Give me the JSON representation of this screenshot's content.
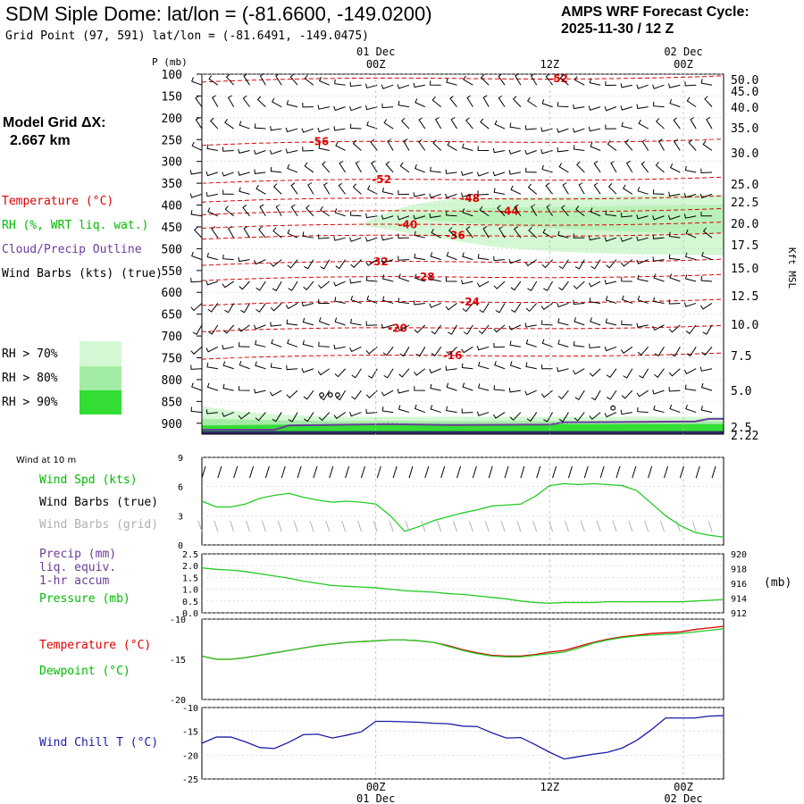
{
  "header": {
    "title": "SDM Siple Dome:  lat/lon = (-81.6600, -149.0200)",
    "subtitle": "Grid Point (97, 591) lat/lon = (-81.6491, -149.0475)",
    "cycle_line1": "AMPS WRF Forecast Cycle:",
    "cycle_line2": "2025-11-30 / 12  Z",
    "model_grid_label": "Model Grid ΔX:",
    "model_grid_value": "2.667 km"
  },
  "legend_main": {
    "temperature": "Temperature (°C)",
    "rh": "RH (%, WRT liq. wat.)",
    "cloud": "Cloud/Precip Outline",
    "wind": "Wind Barbs (kts) (true)",
    "rh70": "RH > 70%",
    "rh80": "RH > 80%",
    "rh90": "RH > 90%",
    "rh_colors": [
      "#d4f8d4",
      "#a3eca3",
      "#33dd33"
    ]
  },
  "legend_wind10": {
    "heading": "Wind at 10 m",
    "spd": "Wind Spd (kts)",
    "barbs_true": "Wind Barbs (true)",
    "barbs_grid": "Wind Barbs (grid)"
  },
  "legend_precip": {
    "precip1": "Precip (mm)",
    "precip2": "liq. equiv.",
    "precip3": "1-hr accum",
    "pressure": "Pressure (mb)",
    "right_unit": "(mb)"
  },
  "legend_temp": {
    "temperature": "Temperature (°C)",
    "dewpoint": "Dewpoint (°C)"
  },
  "legend_chill": {
    "label": "Wind Chill T (°C)"
  },
  "time_axis": {
    "top_dates": [
      "01 Dec",
      "02 Dec"
    ],
    "top_hours": [
      "00Z",
      "12Z",
      "00Z"
    ],
    "bottom_hours": [
      "00Z",
      "12Z",
      "00Z"
    ],
    "bottom_dates": [
      "01 Dec",
      "02 Dec"
    ]
  },
  "colors": {
    "temperature": "#dd0000",
    "rh_green": "#00bb00",
    "cloud_outline": "#6a3d9a",
    "pressure_line": "#22cc22",
    "dewpoint": "#22cc22",
    "wind_chill": "#1a1aa8",
    "grid_barbs": "#b0b0b0"
  },
  "chart_data": [
    {
      "type": "line",
      "name": "vertical cross-section",
      "ylabel": "P (mb)",
      "y2label": "Kft MSL",
      "x_hours_from_cycle": [
        0,
        12,
        24,
        36
      ],
      "pressure_ticks": [
        100,
        150,
        200,
        250,
        300,
        350,
        400,
        450,
        500,
        550,
        600,
        650,
        700,
        750,
        800,
        850,
        900
      ],
      "height_ticks": [
        "50.0",
        "45.0",
        "40.0",
        "35.0",
        "30.0",
        "25.0",
        "22.5",
        "20.0",
        "17.5",
        "15.0",
        "12.5",
        "10.0",
        "7.5",
        "5.0",
        "2.5",
        "2.22"
      ],
      "temperature_labels": [
        {
          "value": "-52",
          "hour": 24.6,
          "p": 110
        },
        {
          "value": "-56",
          "hour": 8.1,
          "p": 255
        },
        {
          "value": "-52",
          "hour": 12.4,
          "p": 342
        },
        {
          "value": "-48",
          "hour": 18.5,
          "p": 385
        },
        {
          "value": "-44",
          "hour": 21.2,
          "p": 414
        },
        {
          "value": "-40",
          "hour": 14.2,
          "p": 445
        },
        {
          "value": "-36",
          "hour": 17.5,
          "p": 470
        },
        {
          "value": "-32",
          "hour": 12.2,
          "p": 530
        },
        {
          "value": "-28",
          "hour": 15.4,
          "p": 565
        },
        {
          "value": "-24",
          "hour": 18.5,
          "p": 622
        },
        {
          "value": "-20",
          "hour": 13.5,
          "p": 682
        },
        {
          "value": "-16",
          "hour": 17.3,
          "p": 745
        }
      ],
      "rh_region_70": {
        "hours_start": 11,
        "hours_end": 36,
        "p_top": 385,
        "p_bottom": 515
      },
      "rh_region_80": {
        "hours_start": 14,
        "hours_end": 36,
        "p_top": 405,
        "p_bottom": 465
      }
    },
    {
      "type": "line",
      "name": "10 m wind speed",
      "ylabel": "kts",
      "ylim": [
        0,
        9
      ],
      "yticks": [
        0,
        3,
        6,
        9
      ],
      "x": [
        0,
        1,
        2,
        3,
        4,
        5,
        6,
        7,
        8,
        9,
        10,
        11,
        12,
        13,
        14,
        15,
        16,
        17,
        18,
        19,
        20,
        21,
        22,
        23,
        24,
        25,
        26,
        27,
        28,
        29,
        30,
        31,
        32,
        33,
        34,
        35,
        36
      ],
      "values": [
        4.5,
        3.9,
        3.9,
        4.2,
        4.8,
        5.1,
        5.3,
        4.9,
        4.6,
        4.4,
        4.5,
        4.4,
        4.2,
        3.0,
        1.4,
        1.9,
        2.5,
        2.9,
        3.3,
        3.6,
        4.0,
        4.1,
        4.2,
        5.0,
        6.1,
        6.3,
        6.2,
        6.3,
        6.2,
        6.1,
        5.6,
        4.3,
        3.0,
        2.0,
        1.3,
        1.0,
        0.8
      ]
    },
    {
      "type": "line",
      "name": "precip and surface pressure",
      "ylim": [
        0,
        2.5
      ],
      "yticks": [
        "0.0",
        "0.5",
        "1.0",
        "1.5",
        "2.0",
        "2.5"
      ],
      "y2ticks": [
        "920",
        "918",
        "916",
        "914",
        "912"
      ],
      "x": [
        0,
        1,
        2,
        3,
        4,
        5,
        6,
        7,
        8,
        9,
        10,
        11,
        12,
        13,
        14,
        15,
        16,
        17,
        18,
        19,
        20,
        21,
        22,
        23,
        24,
        25,
        26,
        27,
        28,
        29,
        30,
        31,
        32,
        33,
        34,
        35,
        36
      ],
      "pressure_mb": [
        918.1,
        917.9,
        917.8,
        917.6,
        917.3,
        917.0,
        916.7,
        916.3,
        916.0,
        915.7,
        915.6,
        915.5,
        915.4,
        915.2,
        915.0,
        914.9,
        914.8,
        914.6,
        914.5,
        914.3,
        914.1,
        913.9,
        913.6,
        913.4,
        913.3,
        913.4,
        913.4,
        913.4,
        913.5,
        913.5,
        913.5,
        913.5,
        913.5,
        913.5,
        913.6,
        913.7,
        913.8
      ]
    },
    {
      "type": "line",
      "name": "temperature and dewpoint",
      "ylim": [
        -20,
        -10
      ],
      "yticks": [
        -20,
        -15,
        -10
      ],
      "x": [
        0,
        1,
        2,
        3,
        4,
        5,
        6,
        7,
        8,
        9,
        10,
        11,
        12,
        13,
        14,
        15,
        16,
        17,
        18,
        19,
        20,
        21,
        22,
        23,
        24,
        25,
        26,
        27,
        28,
        29,
        30,
        31,
        32,
        33,
        34,
        35,
        36
      ],
      "series": [
        {
          "name": "Temperature (°C)",
          "values": [
            -14.6,
            -15.0,
            -15.0,
            -14.8,
            -14.5,
            -14.2,
            -13.9,
            -13.6,
            -13.3,
            -13.1,
            -12.9,
            -12.8,
            -12.7,
            -12.6,
            -12.6,
            -12.7,
            -12.9,
            -13.3,
            -13.8,
            -14.2,
            -14.5,
            -14.6,
            -14.6,
            -14.4,
            -14.1,
            -13.9,
            -13.4,
            -12.9,
            -12.5,
            -12.2,
            -12.0,
            -11.8,
            -11.7,
            -11.6,
            -11.3,
            -11.1,
            -10.9
          ]
        },
        {
          "name": "Dewpoint (°C)",
          "values": [
            -14.6,
            -15.0,
            -15.0,
            -14.8,
            -14.5,
            -14.2,
            -13.9,
            -13.6,
            -13.3,
            -13.1,
            -12.9,
            -12.8,
            -12.7,
            -12.6,
            -12.6,
            -12.7,
            -12.9,
            -13.4,
            -13.9,
            -14.3,
            -14.6,
            -14.7,
            -14.7,
            -14.5,
            -14.3,
            -14.1,
            -13.6,
            -13.0,
            -12.6,
            -12.3,
            -12.1,
            -12.0,
            -11.9,
            -11.8,
            -11.6,
            -11.4,
            -11.2
          ]
        }
      ]
    },
    {
      "type": "line",
      "name": "wind chill",
      "ylim": [
        -25,
        -10
      ],
      "yticks": [
        -25,
        -20,
        -15,
        -10
      ],
      "x": [
        0,
        1,
        2,
        3,
        4,
        5,
        6,
        7,
        8,
        9,
        10,
        11,
        12,
        13,
        14,
        15,
        16,
        17,
        18,
        19,
        20,
        21,
        22,
        23,
        24,
        25,
        26,
        27,
        28,
        29,
        30,
        31,
        32,
        33,
        34,
        35,
        36
      ],
      "values": [
        -17.5,
        -16.2,
        -16.2,
        -17.2,
        -18.4,
        -18.6,
        -17.3,
        -15.7,
        -15.6,
        -16.4,
        -15.8,
        -15.1,
        -12.9,
        -12.9,
        -13.0,
        -13.1,
        -13.3,
        -13.4,
        -13.9,
        -14.0,
        -15.3,
        -16.4,
        -16.3,
        -17.8,
        -19.4,
        -20.8,
        -20.3,
        -19.8,
        -19.4,
        -18.5,
        -16.9,
        -14.7,
        -12.2,
        -12.2,
        -12.2,
        -11.8,
        -11.7
      ]
    }
  ]
}
